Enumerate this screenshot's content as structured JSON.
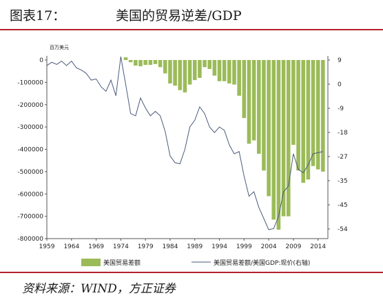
{
  "header": {
    "figure_label": "图表17：",
    "title": "美国的贸易逆差/GDP"
  },
  "footer": {
    "source": "资料来源：WIND，方正证券"
  },
  "colors": {
    "bar": "#9bbb59",
    "line": "#4a5a7a",
    "rule": "#b21e2b"
  },
  "chart_data": {
    "type": "bar+line",
    "unit_label": "百万美元",
    "x_ticks": [
      "1959",
      "1964",
      "1969",
      "1974",
      "1979",
      "1984",
      "1989",
      "1994",
      "1999",
      "2004",
      "2009",
      "2014"
    ],
    "left_axis": {
      "range": [
        -800000,
        0
      ],
      "ticks": [
        "0",
        "-100000",
        "-200000",
        "-300000",
        "-400000",
        "-500000",
        "-600000",
        "-700000",
        "-800000"
      ]
    },
    "right_axis": {
      "ticks": [
        "9",
        "0",
        "-9",
        "-18",
        "-27",
        "-35",
        "-45",
        "-54"
      ],
      "tick_values": [
        9,
        0,
        -9,
        -18,
        -27,
        -35,
        -45,
        -54
      ]
    },
    "series": [
      {
        "name": "美国贸易差额",
        "type": "bar",
        "axis": "left",
        "x": [
          1975,
          1976,
          1977,
          1978,
          1979,
          1980,
          1981,
          1982,
          1983,
          1984,
          1985,
          1986,
          1987,
          1988,
          1989,
          1990,
          1991,
          1992,
          1993,
          1994,
          1995,
          1996,
          1997,
          1998,
          1999,
          2000,
          2001,
          2002,
          2003,
          2004,
          2005,
          2006,
          2007,
          2008,
          2009,
          2010,
          2011,
          2012,
          2013,
          2014,
          2015
        ],
        "values": [
          12000,
          -10000,
          -25000,
          -28000,
          -22000,
          -22000,
          -18000,
          -32000,
          -60000,
          -105000,
          -115000,
          -135000,
          -145000,
          -110000,
          -90000,
          -80000,
          -32000,
          -40000,
          -70000,
          -95000,
          -95000,
          -105000,
          -110000,
          -160000,
          -260000,
          -375000,
          -360000,
          -420000,
          -495000,
          -610000,
          -715000,
          -760000,
          -700000,
          -700000,
          -380000,
          -495000,
          -550000,
          -535000,
          -475000,
          -490000,
          -500000
        ]
      },
      {
        "name": "美国贸易差额/美国GDP:现价(右轴)",
        "type": "line",
        "axis": "left",
        "x": [
          1959,
          1960,
          1961,
          1962,
          1963,
          1964,
          1965,
          1966,
          1967,
          1968,
          1969,
          1970,
          1971,
          1972,
          1973,
          1974,
          1975,
          1976,
          1977,
          1978,
          1979,
          1980,
          1981,
          1982,
          1983,
          1984,
          1985,
          1986,
          1987,
          1988,
          1989,
          1990,
          1991,
          1992,
          1993,
          1994,
          1995,
          1996,
          1997,
          1998,
          1999,
          2000,
          2001,
          2002,
          2003,
          2004,
          2005,
          2006,
          2007,
          2008,
          2009,
          2010,
          2011,
          2012,
          2013,
          2014,
          2015
        ],
        "values": [
          -25000,
          -10000,
          -20000,
          -5000,
          -25000,
          -5000,
          -35000,
          -45000,
          -60000,
          -90000,
          -85000,
          -120000,
          -140000,
          -90000,
          -160000,
          15000,
          -110000,
          -240000,
          -250000,
          -170000,
          -215000,
          -250000,
          -230000,
          -250000,
          -320000,
          -430000,
          -460000,
          -465000,
          -400000,
          -300000,
          -270000,
          -210000,
          -240000,
          -300000,
          -325000,
          -300000,
          -315000,
          -380000,
          -420000,
          -410000,
          -520000,
          -610000,
          -590000,
          -660000,
          -710000,
          -760000,
          -755000,
          -700000,
          -590000,
          -565000,
          -420000,
          -490000,
          -505000,
          -470000,
          -420000,
          -415000,
          -410000
        ]
      }
    ]
  }
}
